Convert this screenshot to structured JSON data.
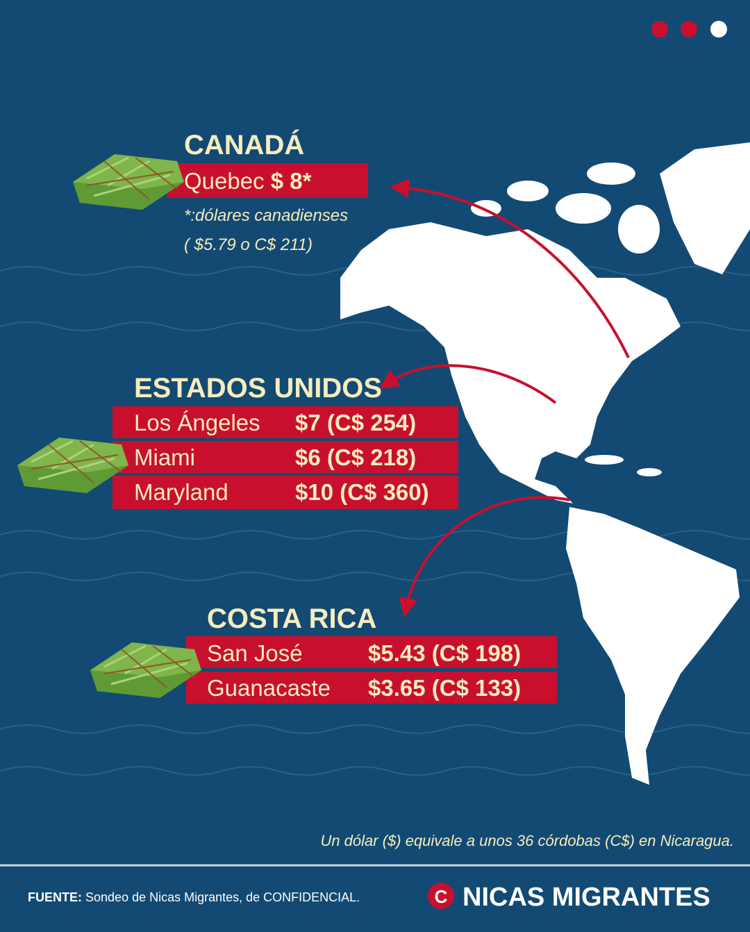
{
  "canada": {
    "title": "CANADÁ",
    "rows": [
      {
        "place": "Quebec",
        "price": "$ 8*"
      }
    ],
    "notes": [
      "*:dólares canadienses",
      "( $5.79 o C$ 211)"
    ]
  },
  "usa": {
    "title": "ESTADOS UNIDOS",
    "rows": [
      {
        "place": "Los Ángeles",
        "price": "$7 (C$ 254)"
      },
      {
        "place": "Miami",
        "price": "$6 (C$ 218)"
      },
      {
        "place": "Maryland",
        "price": "$10 (C$ 360)"
      }
    ]
  },
  "costa_rica": {
    "title": "COSTA RICA",
    "rows": [
      {
        "place": "San José",
        "price": "$5.43 (C$ 198)"
      },
      {
        "place": "Guanacaste",
        "price": "$3.65 (C$ 133)"
      }
    ]
  },
  "footnote": "Un dólar ($) equivale a unos 36 córdobas (C$) en Nicaragua.",
  "source": {
    "label": "FUENTE:",
    "text": "Sondeo de Nicas Migrantes, de CONFIDENCIAL."
  },
  "brand": {
    "logo": "C",
    "name": "NICAS MIGRANTES"
  }
}
